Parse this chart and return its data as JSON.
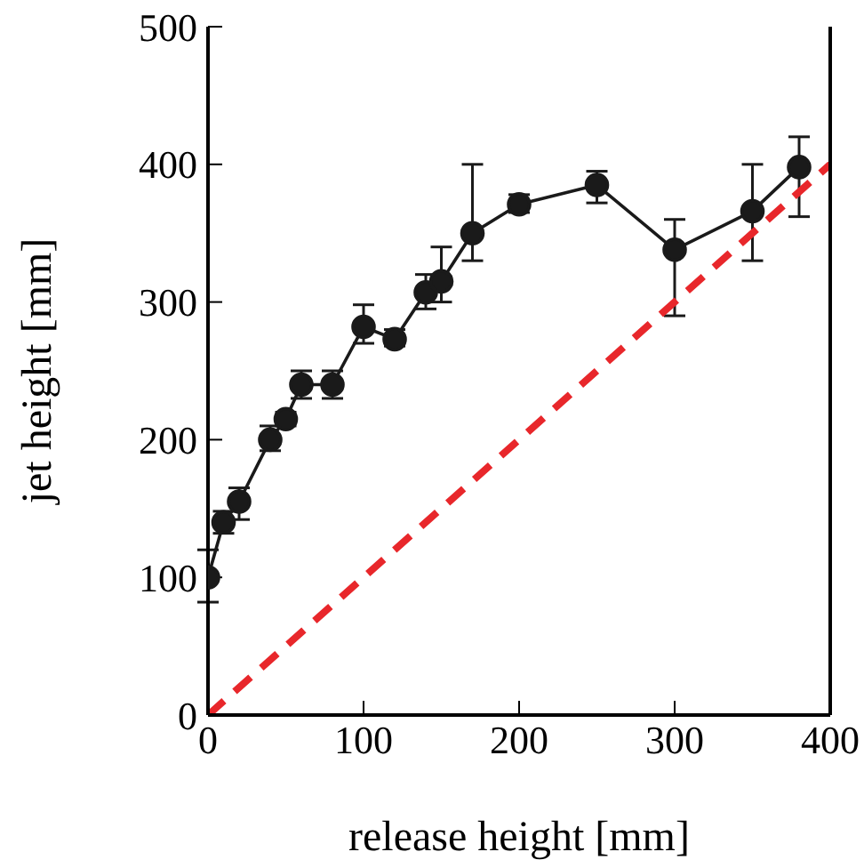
{
  "chart_data": {
    "type": "line",
    "xlabel": "release height [mm]",
    "ylabel": "jet height [mm]",
    "xlim": [
      0,
      400
    ],
    "xticks": [
      0,
      100,
      200,
      300,
      400
    ],
    "ylim": [
      0,
      500
    ],
    "yticks": [
      0,
      100,
      200,
      300,
      400,
      500
    ],
    "series": [
      {
        "color": "#1a1a1a",
        "marker": "circle",
        "line_style": "solid",
        "x": [
          0,
          10,
          20,
          40,
          50,
          60,
          80,
          100,
          120,
          140,
          150,
          170,
          200,
          250,
          300,
          350,
          380
        ],
        "values": [
          100,
          140,
          155,
          200,
          215,
          240,
          240,
          282,
          273,
          307,
          315,
          350,
          371,
          385,
          338,
          366,
          398
        ],
        "errors": [
          [
            82,
            120
          ],
          [
            132,
            148
          ],
          [
            142,
            165
          ],
          [
            192,
            210
          ],
          [
            210,
            220
          ],
          [
            230,
            250
          ],
          [
            230,
            250
          ],
          [
            270,
            298
          ],
          [
            268,
            280
          ],
          [
            295,
            320
          ],
          [
            300,
            340
          ],
          [
            330,
            400
          ],
          [
            365,
            378
          ],
          [
            372,
            395
          ],
          [
            290,
            360
          ],
          [
            330,
            400
          ],
          [
            362,
            420
          ]
        ]
      },
      {
        "color": "#e8272b",
        "marker": "none",
        "line_style": "dashed",
        "x": [
          0,
          400
        ],
        "values": [
          0,
          400
        ]
      }
    ]
  }
}
